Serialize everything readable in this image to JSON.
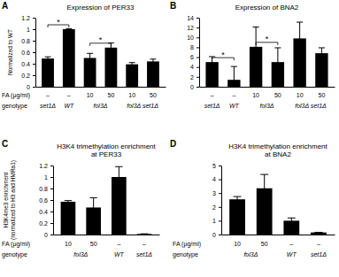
{
  "chart_data": [
    {
      "type": "bar",
      "panel": "A",
      "title": "Expression of PER33",
      "y_label": "Normalized to WT",
      "ylim": [
        0,
        1.2
      ],
      "yticks": [
        0,
        0.2,
        0.4,
        0.6,
        0.8,
        1,
        1.2
      ],
      "categories": [
        "–",
        "–",
        "10",
        "50",
        "10",
        "50"
      ],
      "categories_label": "FA (μg/ml)",
      "genotype": [
        "set1Δ",
        "WT",
        "fol3Δ",
        "fol3Δ",
        "fol3Δ set1Δ",
        "fol3Δ set1Δ"
      ],
      "genotype_label": "genotype",
      "values": [
        0.49,
        1.0,
        0.5,
        0.68,
        0.39,
        0.44
      ],
      "errors": [
        0.03,
        0.01,
        0.08,
        0.08,
        0.03,
        0.04
      ],
      "color": "#000000",
      "significance": [
        {
          "label": "*",
          "pair": [
            0,
            1
          ]
        },
        {
          "label": "*",
          "pair": [
            2,
            3
          ]
        }
      ]
    },
    {
      "type": "bar",
      "panel": "B",
      "title": "Expression of BNA2",
      "ylim": [
        0,
        14
      ],
      "yticks": [
        0,
        2,
        4,
        6,
        8,
        10,
        12,
        14
      ],
      "categories": [
        "–",
        "–",
        "10",
        "50",
        "10",
        "50"
      ],
      "genotype": [
        "set1Δ",
        "WT",
        "fol3Δ",
        "fol3Δ",
        "fol3Δ set1Δ",
        "fol3Δ set1Δ"
      ],
      "values": [
        5.0,
        1.4,
        8.1,
        5.0,
        9.8,
        6.8
      ],
      "errors": [
        1.1,
        2.7,
        4.0,
        2.9,
        3.3,
        1.1
      ],
      "color": "#000000",
      "significance": [
        {
          "label": "*",
          "pair": [
            0,
            1
          ]
        },
        {
          "label": "*",
          "pair": [
            2,
            3
          ]
        }
      ]
    },
    {
      "type": "bar",
      "panel": "C",
      "title": "H3K4 trimethylation enrichment at PER33",
      "y_label": "H3K4me3 enrichment (normalized to H3 and HMRa1)",
      "ylim": [
        0,
        1.2
      ],
      "yticks": [
        0,
        0.2,
        0.4,
        0.6,
        0.8,
        1,
        1.2
      ],
      "categories": [
        "10",
        "50",
        "–",
        "–"
      ],
      "categories_label": "FA (μg/ml)",
      "genotype": [
        "fol3Δ",
        "fol3Δ",
        "WT",
        "set1Δ"
      ],
      "genotype_label": "genotype",
      "values": [
        0.57,
        0.47,
        1.0,
        0.01
      ],
      "errors": [
        0.02,
        0.17,
        0.18,
        0
      ],
      "color": "#000000"
    },
    {
      "type": "bar",
      "panel": "D",
      "title": "H3K4 trimethylation enrichment at BNA2",
      "ylim": [
        0,
        5
      ],
      "yticks": [
        0,
        1,
        2,
        3,
        4,
        5
      ],
      "categories": [
        "10",
        "50",
        "–",
        "–"
      ],
      "categories_label": "FA (μg/ml)",
      "genotype": [
        "fol3Δ",
        "fol3Δ",
        "WT",
        "set1Δ"
      ],
      "genotype_label": "genotype",
      "values": [
        2.55,
        3.35,
        1.0,
        0.15
      ],
      "errors": [
        0.2,
        1.0,
        0.2,
        0
      ],
      "color": "#000000"
    }
  ]
}
